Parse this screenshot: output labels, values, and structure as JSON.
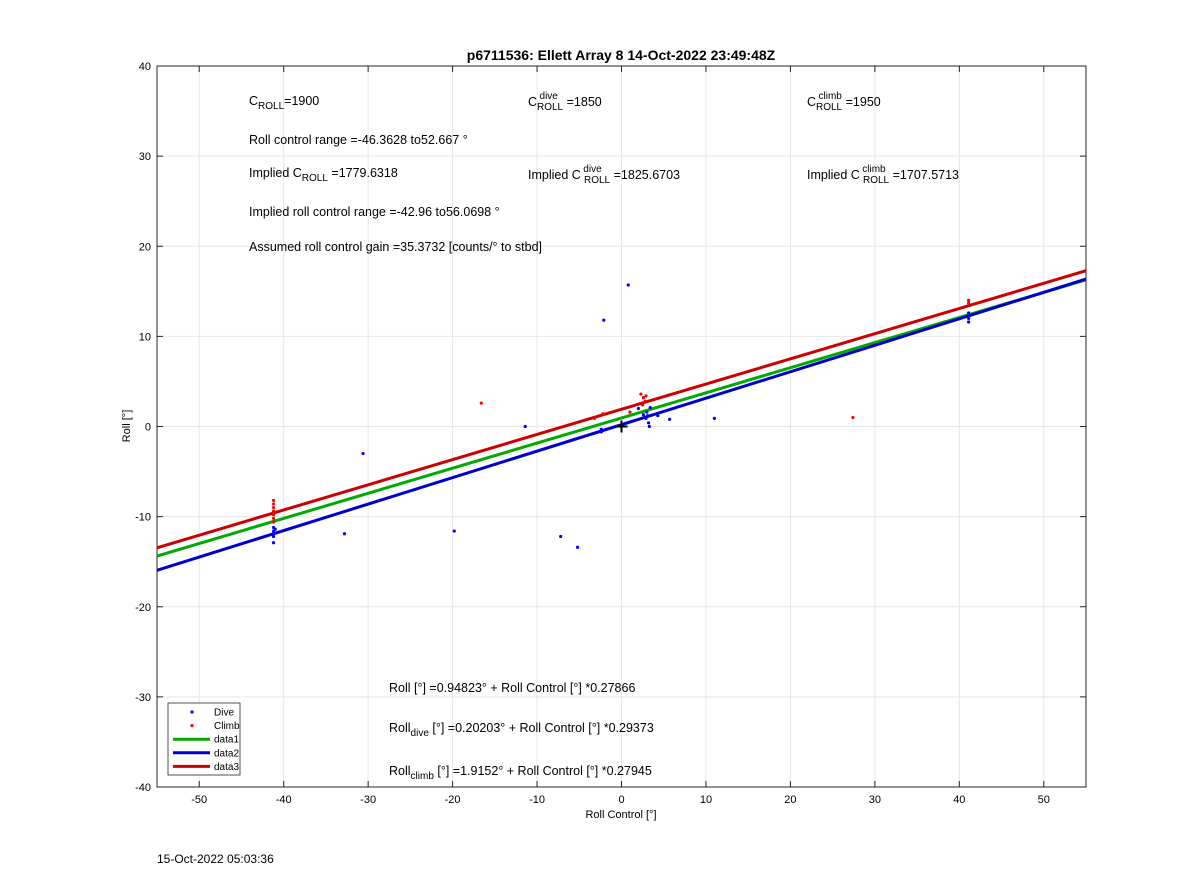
{
  "chart_data": {
    "type": "scatter",
    "title": "p6711536: Ellett Array 8 14-Oct-2022 23:49:48Z",
    "xlabel": "Roll Control [°]",
    "ylabel": "Roll [°]",
    "xlim": [
      -55,
      55
    ],
    "ylim": [
      -40,
      40
    ],
    "xticks": [
      -50,
      -40,
      -30,
      -20,
      -10,
      0,
      10,
      20,
      30,
      40,
      50
    ],
    "yticks": [
      -40,
      -30,
      -20,
      -10,
      0,
      10,
      20,
      30,
      40
    ],
    "grid": true,
    "legend_position": "bottom-left",
    "series": [
      {
        "name": "Dive",
        "kind": "points",
        "color": "#0000ff",
        "points": [
          [
            -41.2,
            -11.2
          ],
          [
            -41.2,
            -11.6
          ],
          [
            -41.2,
            -11.9
          ],
          [
            -41.2,
            -12.2
          ],
          [
            -41.2,
            -12.9
          ],
          [
            -41.0,
            -11.4
          ],
          [
            -32.8,
            -11.9
          ],
          [
            -30.6,
            -3.0
          ],
          [
            -19.8,
            -11.6
          ],
          [
            -11.4,
            0.0
          ],
          [
            -7.2,
            -12.2
          ],
          [
            -5.2,
            -13.4
          ],
          [
            -2.1,
            11.8
          ],
          [
            -2.4,
            -0.3
          ],
          [
            -2.4,
            -0.6
          ],
          [
            0.8,
            15.7
          ],
          [
            2.0,
            2.0
          ],
          [
            2.6,
            1.3
          ],
          [
            2.9,
            0.9
          ],
          [
            3.1,
            1.2
          ],
          [
            3.2,
            0.4
          ],
          [
            3.3,
            0.0
          ],
          [
            3.0,
            1.6
          ],
          [
            3.4,
            2.1
          ],
          [
            4.3,
            1.2
          ],
          [
            5.7,
            0.8
          ],
          [
            11.0,
            0.9
          ],
          [
            41.1,
            11.6
          ],
          [
            41.1,
            12.0
          ],
          [
            41.1,
            12.3
          ],
          [
            41.1,
            12.6
          ]
        ]
      },
      {
        "name": "Climb",
        "kind": "points",
        "color": "#ff0000",
        "points": [
          [
            -41.2,
            -8.2
          ],
          [
            -41.2,
            -8.6
          ],
          [
            -41.2,
            -9.0
          ],
          [
            -41.2,
            -9.4
          ],
          [
            -41.2,
            -9.8
          ],
          [
            -41.2,
            -10.2
          ],
          [
            -41.2,
            -10.6
          ],
          [
            -16.6,
            2.6
          ],
          [
            -3.2,
            0.9
          ],
          [
            -2.2,
            1.4
          ],
          [
            1.0,
            1.6
          ],
          [
            2.3,
            3.6
          ],
          [
            2.6,
            3.2
          ],
          [
            2.8,
            2.8
          ],
          [
            2.9,
            3.4
          ],
          [
            2.5,
            2.4
          ],
          [
            27.4,
            1.0
          ],
          [
            41.1,
            13.7
          ],
          [
            41.1,
            14.0
          ]
        ]
      },
      {
        "name": "data1",
        "kind": "line",
        "color": "#00aa00",
        "intercept": 0.94823,
        "slope": 0.27866
      },
      {
        "name": "data2",
        "kind": "line",
        "color": "#0000cc",
        "intercept": 0.20203,
        "slope": 0.29373
      },
      {
        "name": "data3",
        "kind": "line",
        "color": "#cc0000",
        "intercept": 1.9152,
        "slope": 0.27945
      }
    ],
    "marker": {
      "symbol": "+",
      "x": 0,
      "y": 0
    }
  },
  "annotations": {
    "c_roll_pre": "C",
    "c_roll_sub": "ROLL",
    "c_roll_post": "=1900",
    "c_dive_pre": "C",
    "c_dive_sup": "dive",
    "c_dive_sub": "ROLL",
    "c_dive_post": " =1850",
    "c_climb_pre": "C",
    "c_climb_sup": "climb",
    "c_climb_sub": "ROLL",
    "c_climb_post": " =1950",
    "roll_range": "Roll control range =-46.3628 to52.667 °",
    "impl_pre": "Implied C",
    "impl_sub": "ROLL",
    "impl_post": " =1779.6318",
    "impl_dive_pre": "Implied C",
    "impl_dive_sup": "dive",
    "impl_dive_sub": "ROLL",
    "impl_dive_post": " =1825.6703",
    "impl_climb_pre": "Implied C",
    "impl_climb_sup": "climb",
    "impl_climb_sub": "ROLL",
    "impl_climb_post": " =1707.5713",
    "impl_range": "Implied roll control range =-42.96 to56.0698 °",
    "gain": "Assumed roll control gain =35.3732 [counts/° to stbd]",
    "eq1": "Roll [°] =0.94823° + Roll Control [°] *0.27866",
    "eq2_pre": "Roll",
    "eq2_sub": "dive",
    "eq2_post": " [°] =0.20203° + Roll Control [°] *0.29373",
    "eq3_pre": "Roll",
    "eq3_sub": "climb",
    "eq3_post": " [°] =1.9152° + Roll Control [°] *0.27945"
  },
  "timestamp": "15-Oct-2022 05:03:36"
}
